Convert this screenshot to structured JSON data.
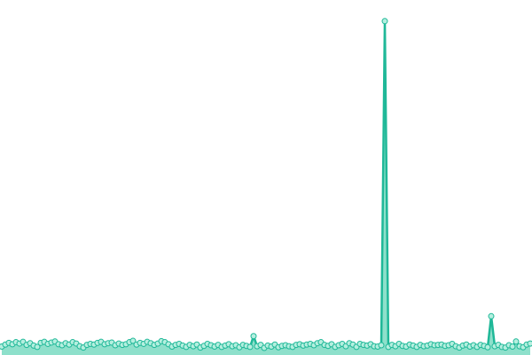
{
  "chart_data": {
    "type": "area",
    "x": [
      0,
      1,
      2,
      3,
      4,
      5,
      6,
      7,
      8,
      9,
      10,
      11,
      12,
      13,
      14,
      15,
      16,
      17,
      18,
      19,
      20,
      21,
      22,
      23,
      24,
      25,
      26,
      27,
      28,
      29,
      30,
      31,
      32,
      33,
      34,
      35,
      36,
      37,
      38,
      39,
      40,
      41,
      42,
      43,
      44,
      45,
      46,
      47,
      48,
      49,
      50,
      51,
      52,
      53,
      54,
      55,
      56,
      57,
      58,
      59,
      60,
      61,
      62,
      63,
      64,
      65,
      66,
      67,
      68,
      69,
      70,
      71,
      72,
      73,
      74,
      75,
      76,
      77,
      78,
      79,
      80,
      81,
      82,
      83,
      84,
      85,
      86,
      87,
      88,
      89,
      90,
      91,
      92,
      93,
      94,
      95,
      96,
      97,
      98,
      99,
      100,
      101,
      102,
      103,
      104,
      105,
      106,
      107,
      108,
      109,
      110,
      111,
      112,
      113,
      114,
      115,
      116,
      117,
      118,
      119,
      120,
      121,
      122,
      123,
      124,
      125,
      126,
      127,
      128,
      129,
      130,
      131,
      132,
      133,
      134,
      135,
      136,
      137,
      138,
      139,
      140,
      141,
      142,
      143,
      144,
      145,
      146,
      147,
      148,
      149
    ],
    "values": [
      2.5,
      3.1,
      3.6,
      3.2,
      3.8,
      3.4,
      3.9,
      3.0,
      3.5,
      2.8,
      2.4,
      3.6,
      3.9,
      3.3,
      3.7,
      4.0,
      3.2,
      2.9,
      3.5,
      3.1,
      3.8,
      3.4,
      2.6,
      2.2,
      3.0,
      3.3,
      3.1,
      3.6,
      3.9,
      3.2,
      3.5,
      3.7,
      2.9,
      3.4,
      3.0,
      3.2,
      3.8,
      4.2,
      3.1,
      3.6,
      3.3,
      3.9,
      3.5,
      3.0,
      3.4,
      4.1,
      3.8,
      3.2,
      2.5,
      3.0,
      3.3,
      2.8,
      2.4,
      3.0,
      2.6,
      3.1,
      2.2,
      2.7,
      3.3,
      2.9,
      2.5,
      3.0,
      2.4,
      2.8,
      3.2,
      2.6,
      2.9,
      2.3,
      3.0,
      2.7,
      2.4,
      5.6,
      2.6,
      3.0,
      2.1,
      2.8,
      2.5,
      3.1,
      2.3,
      2.7,
      2.9,
      2.6,
      2.4,
      3.0,
      3.2,
      2.8,
      3.1,
      3.3,
      2.9,
      3.5,
      3.8,
      3.0,
      2.7,
      3.2,
      2.4,
      2.9,
      3.3,
      2.6,
      3.5,
      3.1,
      2.4,
      3.3,
      3.0,
      2.8,
      3.2,
      2.6,
      2.5,
      2.9,
      99.0,
      2.4,
      3.0,
      2.6,
      3.3,
      2.7,
      2.5,
      3.1,
      2.8,
      2.4,
      3.0,
      2.6,
      2.8,
      3.2,
      2.9,
      3.0,
      3.1,
      2.7,
      2.9,
      3.3,
      2.6,
      2.2,
      2.8,
      3.1,
      2.5,
      2.9,
      2.4,
      3.0,
      2.7,
      2.3,
      11.5,
      2.6,
      3.0,
      2.4,
      2.2,
      2.9,
      2.5,
      4.0,
      2.6,
      2.3,
      3.1,
      3.4
    ],
    "xlim": [
      0,
      149
    ],
    "ylim": [
      0,
      100
    ],
    "color": "#1fb898",
    "fill_color": "#8ee0cb",
    "marker_color": "#b5efdf"
  }
}
